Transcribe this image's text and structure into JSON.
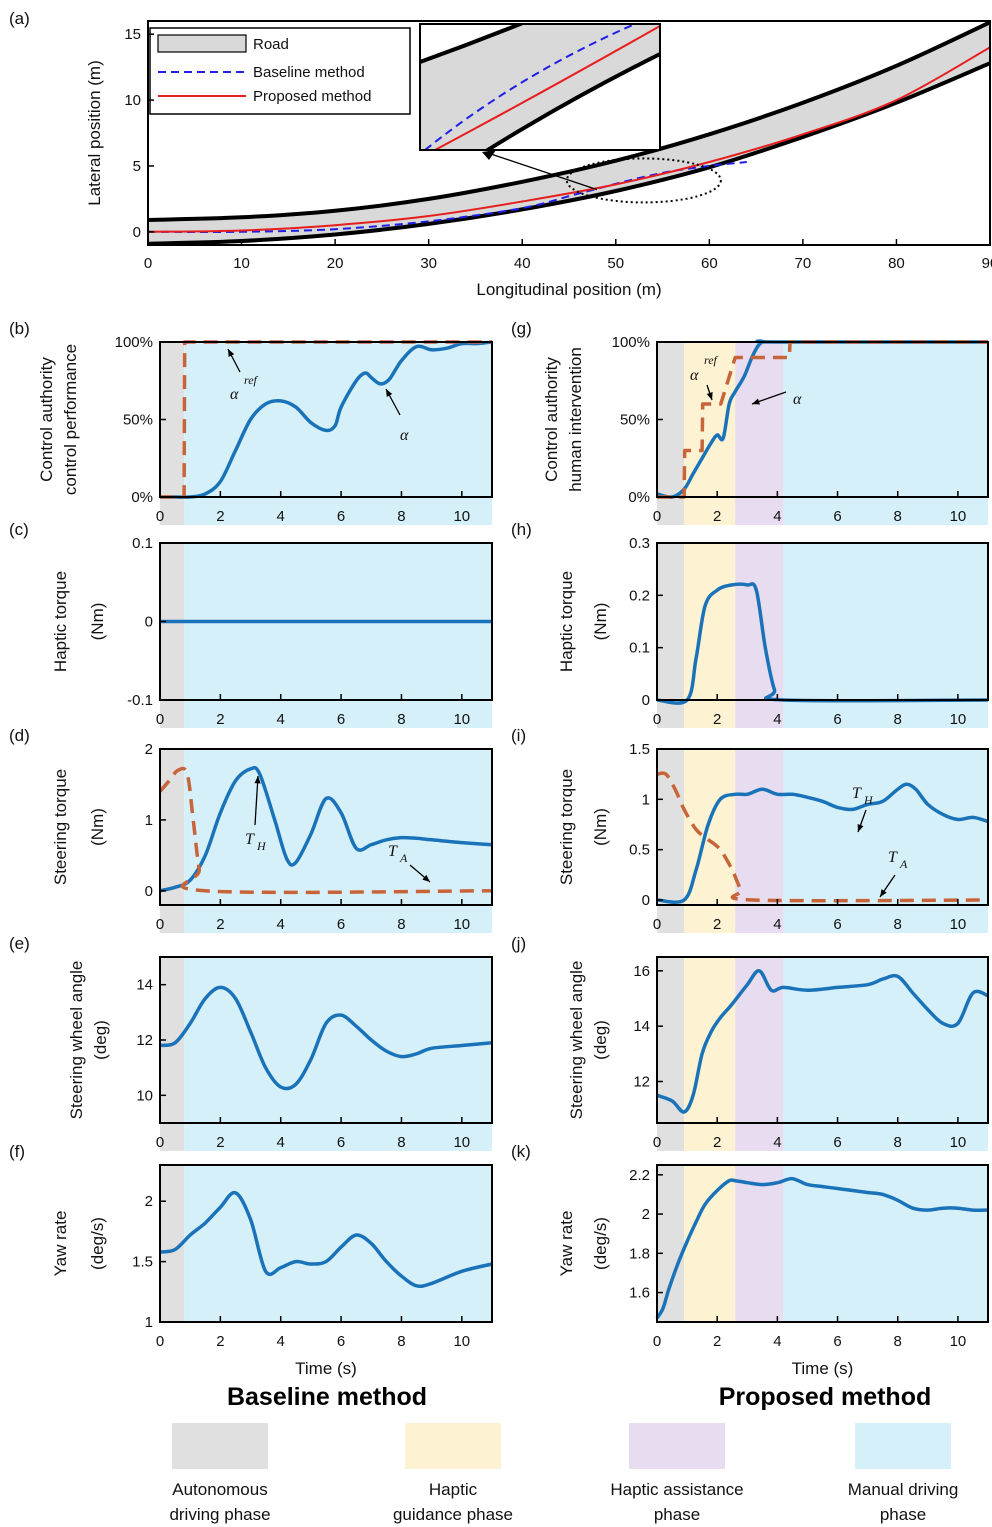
{
  "colors": {
    "autonomous": "#e0e0e0",
    "guidance": "#fdf3d3",
    "assistance": "#e7dcf0",
    "manual": "#d6f0fa",
    "blue_line": "#1a73b8",
    "orange_dashed": "#c8643a",
    "road_gray": "#d9d9d9",
    "baseline_dash": "#1f1fe6",
    "proposed_red": "#e61e1e"
  },
  "panel_a": {
    "label": "(a)",
    "xlabel": "Longitudinal position (m)",
    "ylabel": "Lateral position (m)",
    "xticks": [
      "0",
      "10",
      "20",
      "30",
      "40",
      "50",
      "60",
      "70",
      "80",
      "90"
    ],
    "yticks": [
      "0",
      "5",
      "10",
      "15"
    ],
    "legend": [
      "Road",
      "Baseline method",
      "Proposed method"
    ]
  },
  "panels": {
    "b": {
      "label": "(b)",
      "ylabel1": "Control authority",
      "ylabel2": "control performance",
      "yticks": [
        "0%",
        "50%",
        "100%"
      ],
      "xticks": [
        "0",
        "2",
        "4",
        "6",
        "8",
        "10"
      ]
    },
    "c": {
      "label": "(c)",
      "ylabel1": "Haptic torque",
      "ylabel2": "(Nm)",
      "yticks": [
        "-0.1",
        "0",
        "0.1"
      ],
      "xticks": [
        "0",
        "2",
        "4",
        "6",
        "8",
        "10"
      ]
    },
    "d": {
      "label": "(d)",
      "ylabel1": "Steering torque",
      "ylabel2": "(Nm)",
      "yticks": [
        "0",
        "1",
        "2"
      ],
      "xticks": [
        "0",
        "2",
        "4",
        "6",
        "8",
        "10"
      ]
    },
    "e": {
      "label": "(e)",
      "ylabel1": "Steering wheel angle",
      "ylabel2": "(deg)",
      "yticks": [
        "10",
        "12",
        "14"
      ],
      "xticks": [
        "0",
        "2",
        "4",
        "6",
        "8",
        "10"
      ]
    },
    "f": {
      "label": "(f)",
      "ylabel1": "Yaw rate",
      "ylabel2": "(deg/s)",
      "yticks": [
        "1",
        "1.5",
        "2"
      ],
      "xticks": [
        "0",
        "2",
        "4",
        "6",
        "8",
        "10"
      ],
      "xlabel": "Time (s)"
    },
    "g": {
      "label": "(g)",
      "ylabel1": "Control authority",
      "ylabel2": "human intervention",
      "yticks": [
        "0%",
        "50%",
        "100%"
      ],
      "xticks": [
        "0",
        "2",
        "4",
        "6",
        "8",
        "10"
      ]
    },
    "h": {
      "label": "(h)",
      "ylabel1": "Haptic torque",
      "ylabel2": "(Nm)",
      "yticks": [
        "0",
        "0.1",
        "0.2",
        "0.3"
      ],
      "xticks": [
        "0",
        "2",
        "4",
        "6",
        "8",
        "10"
      ]
    },
    "i": {
      "label": "(i)",
      "ylabel1": "Steering torque",
      "ylabel2": "(Nm)",
      "yticks": [
        "0",
        "0.5",
        "1",
        "1.5"
      ],
      "xticks": [
        "0",
        "2",
        "4",
        "6",
        "8",
        "10"
      ]
    },
    "j": {
      "label": "(j)",
      "ylabel1": "Steering wheel angle",
      "ylabel2": "(deg)",
      "yticks": [
        "12",
        "14",
        "16"
      ],
      "xticks": [
        "0",
        "2",
        "4",
        "6",
        "8",
        "10"
      ]
    },
    "k": {
      "label": "(k)",
      "ylabel1": "Yaw rate",
      "ylabel2": "(deg/s)",
      "yticks": [
        "1.6",
        "1.8",
        "2",
        "2.2"
      ],
      "xticks": [
        "0",
        "2",
        "4",
        "6",
        "8",
        "10"
      ],
      "xlabel": "Time (s)"
    }
  },
  "annotations": {
    "alpha_ref": "α",
    "alpha_ref_sup": "ref",
    "alpha": "α",
    "TH": "T",
    "TH_sub": "H",
    "TA": "T",
    "TA_sub": "A"
  },
  "method_titles": {
    "baseline": "Baseline method",
    "proposed": "Proposed method"
  },
  "phase_legend": [
    {
      "line1": "Autonomous",
      "line2": "driving phase",
      "color": "#e0e0e0"
    },
    {
      "line1": "Haptic",
      "line2": "guidance phase",
      "color": "#fdf3d3"
    },
    {
      "line1": "Haptic assistance",
      "line2": "phase",
      "color": "#e7dcf0"
    },
    {
      "line1": "Manual driving",
      "line2": "phase",
      "color": "#d6f0fa"
    }
  ],
  "chart_data": [
    {
      "type": "line",
      "id": "a",
      "xlabel": "Longitudinal position (m)",
      "ylabel": "Lateral position (m)",
      "xlim": [
        0,
        90
      ],
      "ylim": [
        -1,
        16
      ],
      "series": [
        {
          "name": "Road",
          "x": [
            0,
            10,
            20,
            30,
            40,
            50,
            60,
            70,
            80,
            90
          ],
          "y_upper": [
            0.9,
            1.1,
            1.6,
            2.5,
            3.8,
            5.4,
            7.4,
            9.8,
            12.6,
            15.9
          ],
          "y_lower": [
            -0.9,
            -0.7,
            -0.2,
            0.6,
            1.7,
            3.1,
            4.9,
            7.2,
            9.8,
            12.8
          ]
        },
        {
          "name": "Baseline method",
          "x": [
            0,
            10,
            20,
            30,
            40,
            46,
            52,
            56,
            60,
            64
          ],
          "y": [
            0,
            0,
            0.2,
            0.8,
            1.8,
            2.9,
            4.0,
            4.6,
            5.0,
            5.3
          ]
        },
        {
          "name": "Proposed method",
          "x": [
            0,
            10,
            20,
            30,
            40,
            50,
            60,
            70,
            80,
            90
          ],
          "y": [
            0,
            0.1,
            0.5,
            1.2,
            2.3,
            3.6,
            5.3,
            7.4,
            10.0,
            14.0
          ]
        }
      ]
    },
    {
      "type": "line",
      "id": "b",
      "xlim": [
        0,
        11
      ],
      "ylim": [
        0,
        100
      ],
      "phases": [
        [
          0,
          0.8,
          "autonomous"
        ],
        [
          0.8,
          11,
          "manual"
        ]
      ],
      "series": [
        {
          "name": "α",
          "x": [
            0,
            0.5,
            1,
            1.5,
            2,
            2.5,
            3,
            3.5,
            4,
            4.5,
            5,
            5.5,
            5.8,
            6,
            6.5,
            6.8,
            7,
            7.3,
            7.6,
            8,
            8.5,
            9,
            9.5,
            10,
            10.5,
            11
          ],
          "y": [
            0,
            0,
            0,
            2,
            10,
            30,
            50,
            60,
            62,
            58,
            48,
            43,
            46,
            58,
            75,
            80,
            77,
            73,
            76,
            88,
            97,
            95,
            96,
            99,
            99,
            100
          ]
        },
        {
          "name": "α ref",
          "x": [
            0,
            0.8,
            0.82,
            11
          ],
          "y": [
            0,
            0,
            100,
            100
          ]
        }
      ]
    },
    {
      "type": "line",
      "id": "c",
      "xlim": [
        0,
        11
      ],
      "ylim": [
        -0.1,
        0.1
      ],
      "phases": [
        [
          0,
          0.8,
          "autonomous"
        ],
        [
          0.8,
          11,
          "manual"
        ]
      ],
      "series": [
        {
          "name": "haptic",
          "x": [
            0,
            11
          ],
          "y": [
            0,
            0
          ]
        }
      ]
    },
    {
      "type": "line",
      "id": "d",
      "xlim": [
        0,
        11
      ],
      "ylim": [
        -0.2,
        2
      ],
      "phases": [
        [
          0,
          0.8,
          "autonomous"
        ],
        [
          0.8,
          11,
          "manual"
        ]
      ],
      "series": [
        {
          "name": "T_H",
          "x": [
            0,
            0.5,
            1,
            1.5,
            2,
            2.5,
            3,
            3.3,
            3.8,
            4.2,
            4.5,
            5,
            5.5,
            6,
            6.5,
            7,
            7.5,
            8,
            8.5,
            9,
            10,
            11
          ],
          "y": [
            0,
            0.05,
            0.15,
            0.5,
            1.1,
            1.55,
            1.72,
            1.65,
            1.0,
            0.45,
            0.4,
            0.8,
            1.3,
            1.1,
            0.6,
            0.65,
            0.72,
            0.75,
            0.74,
            0.72,
            0.68,
            0.65
          ]
        },
        {
          "name": "T_A",
          "x": [
            0,
            0.3,
            0.6,
            0.9,
            1.1,
            1.3,
            1.5,
            11
          ],
          "y": [
            1.4,
            1.55,
            1.7,
            1.65,
            1.0,
            0.3,
            0,
            0
          ]
        }
      ]
    },
    {
      "type": "line",
      "id": "e",
      "xlim": [
        0,
        11
      ],
      "ylim": [
        9,
        15
      ],
      "phases": [
        [
          0,
          0.8,
          "autonomous"
        ],
        [
          0.8,
          11,
          "manual"
        ]
      ],
      "series": [
        {
          "name": "angle",
          "x": [
            0,
            0.5,
            1,
            1.5,
            2,
            2.5,
            3,
            3.5,
            4,
            4.5,
            5,
            5.5,
            6,
            6.5,
            7,
            7.5,
            8,
            8.5,
            9,
            10,
            11
          ],
          "y": [
            11.8,
            11.9,
            12.6,
            13.5,
            13.9,
            13.5,
            12.3,
            11.0,
            10.3,
            10.4,
            11.3,
            12.6,
            12.9,
            12.5,
            12.0,
            11.6,
            11.4,
            11.5,
            11.7,
            11.8,
            11.9
          ]
        }
      ]
    },
    {
      "type": "line",
      "id": "f",
      "xlim": [
        0,
        11
      ],
      "ylim": [
        1,
        2.3
      ],
      "phases": [
        [
          0,
          0.8,
          "autonomous"
        ],
        [
          0.8,
          11,
          "manual"
        ]
      ],
      "series": [
        {
          "name": "yaw",
          "x": [
            0,
            0.5,
            1,
            1.5,
            2,
            2.5,
            3,
            3.5,
            4,
            4.5,
            5,
            5.5,
            6,
            6.5,
            7,
            7.5,
            8,
            8.5,
            9,
            10,
            11
          ],
          "y": [
            1.58,
            1.6,
            1.72,
            1.82,
            1.95,
            2.07,
            1.85,
            1.42,
            1.45,
            1.5,
            1.48,
            1.5,
            1.62,
            1.72,
            1.65,
            1.5,
            1.38,
            1.3,
            1.32,
            1.42,
            1.48
          ]
        }
      ]
    },
    {
      "type": "line",
      "id": "g",
      "xlim": [
        0,
        11
      ],
      "ylim": [
        0,
        100
      ],
      "phases": [
        [
          0,
          0.9,
          "autonomous"
        ],
        [
          0.9,
          2.6,
          "guidance"
        ],
        [
          2.6,
          4.2,
          "assistance"
        ],
        [
          4.2,
          11,
          "manual"
        ]
      ],
      "series": [
        {
          "name": "α",
          "x": [
            0,
            0.5,
            0.9,
            1.2,
            1.5,
            1.8,
            2,
            2.2,
            2.4,
            2.6,
            2.9,
            3.2,
            3.5,
            4,
            11
          ],
          "y": [
            2,
            0,
            5,
            15,
            25,
            35,
            40,
            38,
            60,
            68,
            78,
            92,
            100,
            100,
            100
          ]
        },
        {
          "name": "α ref",
          "x": [
            0,
            0.9,
            0.92,
            1.5,
            1.52,
            2.1,
            2.12,
            2.6,
            2.62,
            4.4,
            4.42,
            11
          ],
          "y": [
            0,
            0,
            30,
            30,
            60,
            60,
            60,
            90,
            90,
            90,
            100,
            100
          ]
        }
      ]
    },
    {
      "type": "line",
      "id": "h",
      "xlim": [
        0,
        11
      ],
      "ylim": [
        0,
        0.3
      ],
      "phases": [
        [
          0,
          0.9,
          "autonomous"
        ],
        [
          0.9,
          2.6,
          "guidance"
        ],
        [
          2.6,
          4.2,
          "assistance"
        ],
        [
          4.2,
          11,
          "manual"
        ]
      ],
      "series": [
        {
          "name": "haptic",
          "x": [
            0,
            1,
            1.3,
            1.6,
            2,
            2.5,
            3,
            3.3,
            3.6,
            3.9,
            4.2,
            11
          ],
          "y": [
            0,
            0,
            0.08,
            0.18,
            0.21,
            0.22,
            0.22,
            0.21,
            0.1,
            0.02,
            0,
            0
          ]
        }
      ]
    },
    {
      "type": "line",
      "id": "i",
      "xlim": [
        0,
        11
      ],
      "ylim": [
        -0.05,
        1.5
      ],
      "phases": [
        [
          0,
          0.9,
          "autonomous"
        ],
        [
          0.9,
          2.6,
          "guidance"
        ],
        [
          2.6,
          4.2,
          "assistance"
        ],
        [
          4.2,
          11,
          "manual"
        ]
      ],
      "series": [
        {
          "name": "T_H",
          "x": [
            0,
            0.9,
            1.3,
            1.7,
            2.1,
            2.6,
            3,
            3.5,
            4,
            4.5,
            5,
            5.5,
            6,
            6.5,
            7,
            7.5,
            8,
            8.3,
            8.6,
            9,
            9.5,
            10,
            10.5,
            11
          ],
          "y": [
            0,
            0,
            0.3,
            0.75,
            1.0,
            1.05,
            1.05,
            1.1,
            1.05,
            1.05,
            1.02,
            0.98,
            0.92,
            0.9,
            0.95,
            0.98,
            1.1,
            1.15,
            1.1,
            0.95,
            0.85,
            0.8,
            0.82,
            0.78
          ]
        },
        {
          "name": "T_A",
          "x": [
            0,
            0.3,
            0.6,
            0.9,
            1.3,
            1.7,
            2.1,
            2.5,
            2.8,
            3.2,
            11
          ],
          "y": [
            1.25,
            1.25,
            1.1,
            0.9,
            0.7,
            0.6,
            0.5,
            0.3,
            0.1,
            0,
            0
          ]
        }
      ]
    },
    {
      "type": "line",
      "id": "j",
      "xlim": [
        0,
        11
      ],
      "ylim": [
        10.5,
        16.5
      ],
      "phases": [
        [
          0,
          0.9,
          "autonomous"
        ],
        [
          0.9,
          2.6,
          "guidance"
        ],
        [
          2.6,
          4.2,
          "assistance"
        ],
        [
          4.2,
          11,
          "manual"
        ]
      ],
      "series": [
        {
          "name": "angle",
          "x": [
            0,
            0.5,
            0.9,
            1.2,
            1.5,
            1.8,
            2.1,
            2.5,
            3,
            3.4,
            3.8,
            4.2,
            5,
            6,
            7,
            7.5,
            8,
            8.5,
            9,
            9.5,
            10,
            10.5,
            11
          ],
          "y": [
            11.5,
            11.3,
            10.9,
            11.5,
            13.0,
            13.8,
            14.3,
            14.8,
            15.5,
            16.0,
            15.3,
            15.4,
            15.3,
            15.4,
            15.5,
            15.7,
            15.8,
            15.2,
            14.6,
            14.1,
            14.1,
            15.2,
            15.1
          ]
        }
      ]
    },
    {
      "type": "line",
      "id": "k",
      "xlim": [
        0,
        11
      ],
      "ylim": [
        1.45,
        2.25
      ],
      "phases": [
        [
          0,
          0.9,
          "autonomous"
        ],
        [
          0.9,
          2.6,
          "guidance"
        ],
        [
          2.6,
          4.2,
          "assistance"
        ],
        [
          4.2,
          11,
          "manual"
        ]
      ],
      "series": [
        {
          "name": "yaw",
          "x": [
            0,
            0.2,
            0.4,
            0.7,
            1,
            1.3,
            1.6,
            2,
            2.4,
            2.6,
            3,
            3.5,
            4,
            4.5,
            5,
            5.5,
            6,
            6.5,
            7,
            7.5,
            8,
            8.5,
            9,
            9.5,
            10,
            10.5,
            11
          ],
          "y": [
            1.47,
            1.52,
            1.62,
            1.75,
            1.86,
            1.96,
            2.05,
            2.12,
            2.17,
            2.17,
            2.16,
            2.15,
            2.16,
            2.18,
            2.15,
            2.14,
            2.13,
            2.12,
            2.11,
            2.1,
            2.07,
            2.03,
            2.02,
            2.03,
            2.03,
            2.02,
            2.02
          ]
        }
      ]
    }
  ]
}
